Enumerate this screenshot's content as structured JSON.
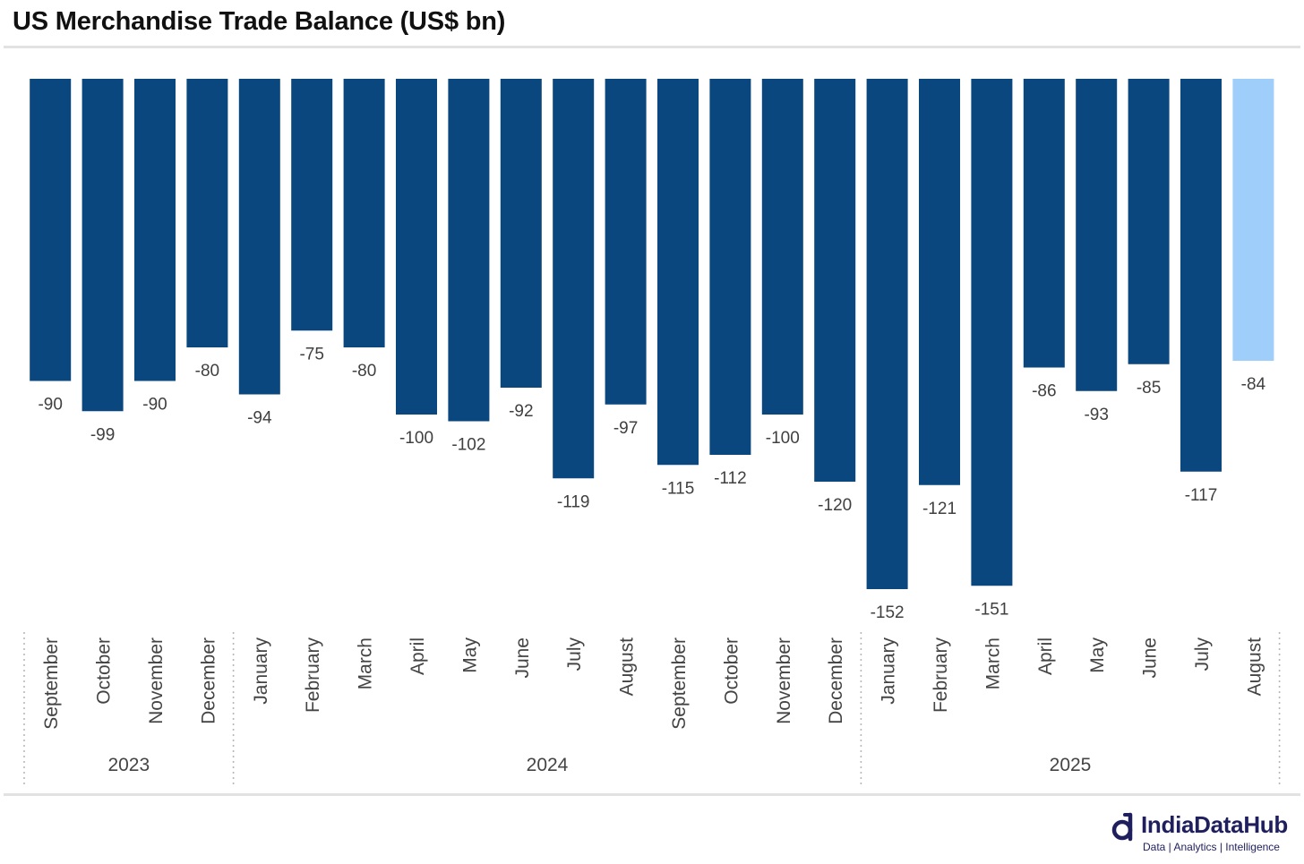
{
  "header": {
    "title": "US Merchandise Trade Balance (US$ bn)"
  },
  "colors": {
    "bar": "#0a477f",
    "bar_highlight": "#9fcefa",
    "label": "#404040"
  },
  "chart_data": {
    "type": "bar",
    "title": "US Merchandise Trade Balance (US$ bn)",
    "xlabel": "",
    "ylabel": "",
    "ylim": [
      -160,
      0
    ],
    "grid": false,
    "legend": "none",
    "categories": [
      "September",
      "October",
      "November",
      "December",
      "January",
      "February",
      "March",
      "April",
      "May",
      "June",
      "July",
      "August",
      "September",
      "October",
      "November",
      "December",
      "January",
      "February",
      "March",
      "April",
      "May",
      "June",
      "July",
      "August"
    ],
    "years": [
      {
        "label": "2023",
        "count": 4
      },
      {
        "label": "2024",
        "count": 12
      },
      {
        "label": "2025",
        "count": 8
      }
    ],
    "values": [
      -90,
      -99,
      -90,
      -80,
      -94,
      -75,
      -80,
      -100,
      -102,
      -92,
      -119,
      -97,
      -115,
      -112,
      -100,
      -120,
      -152,
      -121,
      -151,
      -86,
      -93,
      -85,
      -117,
      -84
    ],
    "labels": [
      "-90",
      "-99",
      "-90",
      "-80",
      "-94",
      "-75",
      "-80",
      "-100",
      "-102",
      "-92",
      "-119",
      "-97",
      "-115",
      "-112",
      "-100",
      "-120",
      "-152",
      "-121",
      "-151",
      "-86",
      "-93",
      "-85",
      "-117",
      "-84"
    ],
    "highlight_last": true
  },
  "logo": {
    "name": "IndiaDataHub",
    "tagline": "Data | Analytics | Intelligence"
  }
}
